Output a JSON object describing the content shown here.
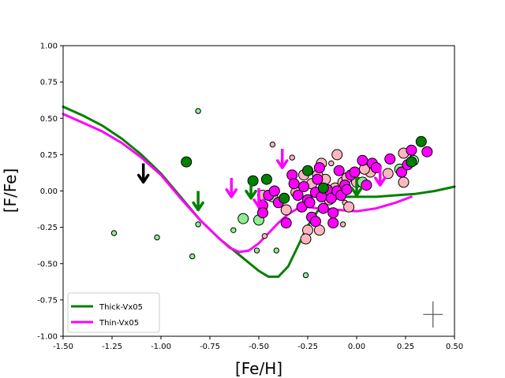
{
  "chart_data": {
    "type": "scatter",
    "xlabel": "[Fe/H]",
    "ylabel": "[F/Fe]",
    "xlim": [
      -1.5,
      0.5
    ],
    "ylim": [
      -1.0,
      1.0
    ],
    "xticks": [
      "-1.50",
      "-1.25",
      "-1.00",
      "-0.75",
      "-0.50",
      "-0.25",
      "0.00",
      "0.25",
      "0.50"
    ],
    "yticks": [
      "-1.00",
      "-0.75",
      "-0.50",
      "-0.25",
      "0.00",
      "0.25",
      "0.50",
      "0.75",
      "1.00"
    ],
    "legend": {
      "placement": "lower-left",
      "entries": [
        {
          "label": "Thick-Vx05",
          "color": "#008000"
        },
        {
          "label": "Thin-Vx05",
          "color": "#ff00ff"
        }
      ]
    },
    "colors": {
      "thick": "#008000",
      "thin": "#ff00ff",
      "thick_light": "#90ee90",
      "thin_light": "#ffb6c1",
      "upper_limit_black": "#000000",
      "error_cross": "#555555"
    },
    "series": [
      {
        "name": "Thick-Vx05",
        "kind": "line",
        "color": "#008000",
        "points": [
          [
            -1.5,
            0.58
          ],
          [
            -1.4,
            0.52
          ],
          [
            -1.3,
            0.45
          ],
          [
            -1.2,
            0.36
          ],
          [
            -1.1,
            0.25
          ],
          [
            -1.0,
            0.12
          ],
          [
            -0.9,
            -0.04
          ],
          [
            -0.8,
            -0.2
          ],
          [
            -0.7,
            -0.33
          ],
          [
            -0.6,
            -0.44
          ],
          [
            -0.5,
            -0.55
          ],
          [
            -0.45,
            -0.59
          ],
          [
            -0.4,
            -0.59
          ],
          [
            -0.35,
            -0.52
          ],
          [
            -0.3,
            -0.38
          ],
          [
            -0.25,
            -0.24
          ],
          [
            -0.2,
            -0.14
          ],
          [
            -0.15,
            -0.08
          ],
          [
            -0.1,
            -0.05
          ],
          [
            -0.05,
            -0.04
          ],
          [
            0.0,
            -0.04
          ],
          [
            0.1,
            -0.04
          ],
          [
            0.2,
            -0.03
          ],
          [
            0.3,
            -0.02
          ],
          [
            0.4,
            0.0
          ],
          [
            0.5,
            0.03
          ]
        ]
      },
      {
        "name": "Thin-Vx05",
        "kind": "line",
        "color": "#ff00ff",
        "points": [
          [
            -1.5,
            0.53
          ],
          [
            -1.4,
            0.47
          ],
          [
            -1.3,
            0.41
          ],
          [
            -1.2,
            0.33
          ],
          [
            -1.1,
            0.23
          ],
          [
            -1.0,
            0.11
          ],
          [
            -0.9,
            -0.05
          ],
          [
            -0.8,
            -0.2
          ],
          [
            -0.7,
            -0.33
          ],
          [
            -0.65,
            -0.39
          ],
          [
            -0.6,
            -0.42
          ],
          [
            -0.55,
            -0.41
          ],
          [
            -0.5,
            -0.36
          ],
          [
            -0.45,
            -0.29
          ],
          [
            -0.4,
            -0.22
          ],
          [
            -0.35,
            -0.16
          ],
          [
            -0.3,
            -0.12
          ],
          [
            -0.25,
            -0.11
          ],
          [
            -0.2,
            -0.12
          ],
          [
            -0.1,
            -0.13
          ],
          [
            0.0,
            -0.14
          ],
          [
            0.1,
            -0.12
          ],
          [
            0.2,
            -0.08
          ],
          [
            0.28,
            -0.04
          ]
        ]
      },
      {
        "name": "thick-large",
        "kind": "marker",
        "marker": "circle",
        "size": "large",
        "color": "#008000",
        "points": [
          [
            -0.87,
            0.2
          ],
          [
            -0.53,
            0.07
          ],
          [
            -0.46,
            0.08
          ],
          [
            -0.37,
            -0.05
          ],
          [
            -0.25,
            0.14
          ],
          [
            -0.17,
            0.02
          ],
          [
            0.33,
            0.34
          ],
          [
            0.28,
            0.2
          ]
        ]
      },
      {
        "name": "thick-large-light",
        "kind": "marker",
        "marker": "circle",
        "size": "large",
        "color": "#90ee90",
        "points": [
          [
            -0.58,
            -0.19
          ],
          [
            -0.5,
            -0.2
          ],
          [
            -0.43,
            -0.04
          ],
          [
            0.22,
            0.15
          ],
          [
            0.29,
            0.21
          ],
          [
            0.03,
            0.06
          ]
        ]
      },
      {
        "name": "thick-small-light",
        "kind": "marker",
        "marker": "circle",
        "size": "small",
        "color": "#90ee90",
        "points": [
          [
            -1.24,
            -0.29
          ],
          [
            -1.02,
            -0.32
          ],
          [
            -0.84,
            -0.45
          ],
          [
            -0.81,
            0.55
          ],
          [
            -0.81,
            -0.23
          ],
          [
            -0.63,
            -0.27
          ],
          [
            -0.51,
            -0.41
          ],
          [
            -0.41,
            -0.41
          ],
          [
            -0.26,
            -0.58
          ]
        ]
      },
      {
        "name": "thin-large",
        "kind": "marker",
        "marker": "circle",
        "size": "large",
        "color": "#ff00ff",
        "points": [
          [
            -0.48,
            -0.1
          ],
          [
            -0.45,
            -0.03
          ],
          [
            -0.42,
            0.0
          ],
          [
            -0.4,
            -0.08
          ],
          [
            -0.33,
            0.11
          ],
          [
            -0.32,
            0.05
          ],
          [
            -0.3,
            -0.03
          ],
          [
            -0.28,
            -0.11
          ],
          [
            -0.27,
            0.03
          ],
          [
            -0.25,
            -0.06
          ],
          [
            -0.23,
            -0.18
          ],
          [
            -0.21,
            -0.01
          ],
          [
            -0.2,
            0.08
          ],
          [
            -0.19,
            0.16
          ],
          [
            -0.17,
            -0.12
          ],
          [
            -0.15,
            0.01
          ],
          [
            -0.13,
            -0.05
          ],
          [
            -0.12,
            -0.15
          ],
          [
            -0.1,
            0.0
          ],
          [
            -0.09,
            0.14
          ],
          [
            -0.08,
            -0.03
          ],
          [
            -0.06,
            0.04
          ],
          [
            -0.05,
            0.01
          ],
          [
            -0.03,
            0.11
          ],
          [
            -0.01,
            0.13
          ],
          [
            0.03,
            0.21
          ],
          [
            0.05,
            0.04
          ],
          [
            0.08,
            0.19
          ],
          [
            0.1,
            0.16
          ],
          [
            0.17,
            0.22
          ],
          [
            0.23,
            0.13
          ],
          [
            0.26,
            0.18
          ],
          [
            0.28,
            0.28
          ],
          [
            0.36,
            0.27
          ],
          [
            -0.21,
            -0.21
          ],
          [
            -0.12,
            -0.22
          ],
          [
            -0.36,
            -0.22
          ],
          [
            -0.48,
            -0.15
          ],
          [
            -0.24,
            -0.08
          ],
          [
            -0.18,
            -0.04
          ]
        ]
      },
      {
        "name": "thin-large-light",
        "kind": "marker",
        "marker": "circle",
        "size": "large",
        "color": "#ffb6c1",
        "points": [
          [
            -0.48,
            -0.03
          ],
          [
            -0.36,
            -0.13
          ],
          [
            -0.31,
            -0.01
          ],
          [
            -0.27,
            0.11
          ],
          [
            -0.25,
            -0.27
          ],
          [
            -0.26,
            -0.33
          ],
          [
            -0.19,
            -0.27
          ],
          [
            -0.18,
            0.19
          ],
          [
            -0.16,
            0.08
          ],
          [
            -0.11,
            0.02
          ],
          [
            -0.07,
            0.06
          ],
          [
            -0.1,
            0.25
          ],
          [
            -0.14,
            -0.06
          ],
          [
            -0.04,
            -0.11
          ],
          [
            0.0,
            0.06
          ],
          [
            0.07,
            0.13
          ],
          [
            0.16,
            0.12
          ],
          [
            0.24,
            0.26
          ],
          [
            0.24,
            0.06
          ],
          [
            -0.2,
            0.11
          ],
          [
            -0.23,
            0.05
          ],
          [
            -0.05,
            0.09
          ],
          [
            0.04,
            0.15
          ]
        ]
      },
      {
        "name": "thin-small-light",
        "kind": "marker",
        "marker": "circle",
        "size": "small",
        "color": "#ffb6c1",
        "points": [
          [
            -0.43,
            0.32
          ],
          [
            -0.33,
            0.23
          ],
          [
            -0.47,
            -0.31
          ],
          [
            -0.2,
            -0.24
          ],
          [
            -0.13,
            0.19
          ],
          [
            -0.07,
            -0.23
          ],
          [
            -0.06,
            -0.08
          ]
        ]
      },
      {
        "name": "upper-limits-black",
        "kind": "marker",
        "marker": "arrow-down",
        "color": "#000000",
        "points": [
          [
            -1.09,
            0.19
          ]
        ]
      },
      {
        "name": "upper-limits-thick",
        "kind": "marker",
        "marker": "arrow-down",
        "color": "#008000",
        "points": [
          [
            -0.81,
            0.0
          ],
          [
            -0.54,
            0.08
          ],
          [
            0.0,
            0.1
          ]
        ]
      },
      {
        "name": "upper-limits-thin",
        "kind": "marker",
        "marker": "arrow-down",
        "color": "#ff00ff",
        "points": [
          [
            -0.64,
            0.09
          ],
          [
            -0.38,
            0.29
          ],
          [
            -0.5,
            0.02
          ],
          [
            0.12,
            0.17
          ]
        ]
      }
    ],
    "error_bar": {
      "x": 0.39,
      "y": -0.85,
      "xerr": 0.05,
      "yerr": 0.09
    }
  }
}
